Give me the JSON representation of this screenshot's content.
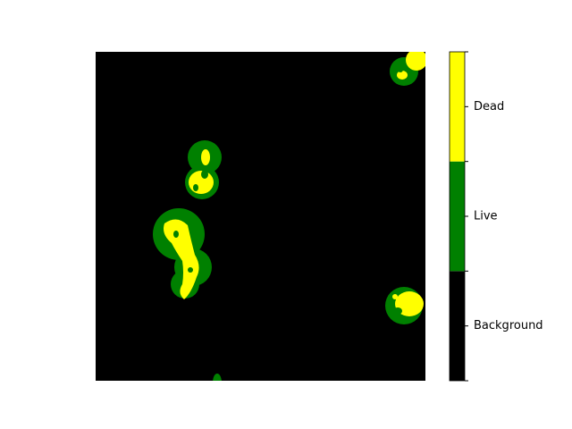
{
  "chart_data": {
    "type": "segmentation",
    "colorbar": {
      "classes": [
        {
          "name": "Background",
          "color": "#000000"
        },
        {
          "name": "Live",
          "color": "#008000"
        },
        {
          "name": "Dead",
          "color": "#ffff00"
        }
      ]
    }
  }
}
